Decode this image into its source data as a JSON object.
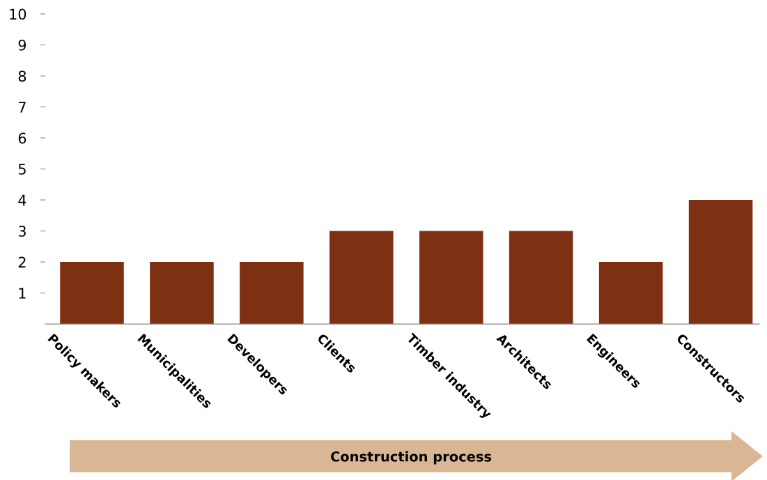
{
  "chart_data": {
    "type": "bar",
    "categories": [
      "Policy makers",
      "Municipalities",
      "Developers",
      "Clients",
      "Timber industry",
      "Architects",
      "Engineers",
      "Constructors"
    ],
    "values": [
      2,
      2,
      2,
      3,
      3,
      3,
      2,
      4
    ],
    "color": "#7d3012",
    "ylim": [
      0,
      10
    ],
    "yticks": [
      1,
      2,
      3,
      4,
      5,
      6,
      7,
      8,
      9,
      10
    ],
    "grid": false,
    "legend": false,
    "annotations": [
      "Construction process"
    ]
  }
}
